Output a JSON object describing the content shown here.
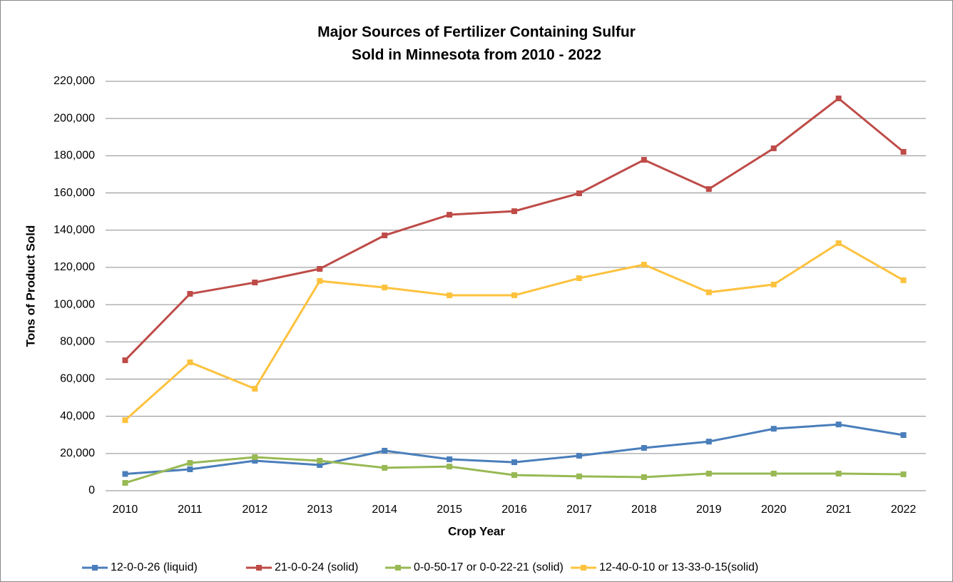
{
  "chart_data": {
    "type": "line",
    "title": [
      "Major Sources of Fertilizer Containing Sulfur",
      "Sold in Minnesota from 2010 - 2022"
    ],
    "x_label": "Crop Year",
    "y_label": "Tons of Product Sold",
    "categories": [
      "2010",
      "2011",
      "2012",
      "2013",
      "2014",
      "2015",
      "2016",
      "2017",
      "2018",
      "2019",
      "2020",
      "2021",
      "2022"
    ],
    "series": [
      {
        "name": "12-0-0-26 (liquid)",
        "color": "#4a7ebb",
        "values": [
          9000,
          11500,
          16100,
          13800,
          21500,
          16900,
          15300,
          18800,
          23000,
          26400,
          33300,
          35600,
          29900
        ]
      },
      {
        "name": "21-0-0-24 (solid)",
        "color": "#be4b48",
        "values": [
          70100,
          105800,
          111900,
          119200,
          137200,
          148300,
          150200,
          159800,
          177800,
          162100,
          184000,
          210800,
          182100
        ]
      },
      {
        "name": "0-0-50-17 or 0-0-22-21 (solid)",
        "color": "#98b954",
        "values": [
          4200,
          14900,
          18000,
          16100,
          12300,
          13000,
          8400,
          7700,
          7300,
          9200,
          9200,
          9200,
          8800
        ]
      },
      {
        "name": "12-40-0-10  or 13-33-0-15(solid)",
        "color": "#fdc23e",
        "values": [
          37900,
          69000,
          54800,
          112700,
          109200,
          105000,
          105000,
          114200,
          121500,
          106600,
          110800,
          133000,
          113100
        ]
      }
    ],
    "ylim": [
      0,
      220000
    ],
    "yticks": [
      0,
      {
        "value": 20000,
        "label": "20,000"
      },
      {
        "value": 40000,
        "label": "40,000"
      },
      {
        "value": 60000,
        "label": "60,000"
      },
      {
        "value": 80000,
        "label": "80,000"
      },
      {
        "value": 100000,
        "label": "100,000"
      },
      {
        "value": 120000,
        "label": "120,000"
      },
      {
        "value": 140000,
        "label": "140,000"
      },
      {
        "value": 160000,
        "label": "160,000"
      },
      {
        "value": 180000,
        "label": "180,000"
      },
      {
        "value": 200000,
        "label": "200,000"
      },
      {
        "value": 220000,
        "label": "220,000"
      }
    ],
    "grid": true,
    "legend": "bottom"
  }
}
